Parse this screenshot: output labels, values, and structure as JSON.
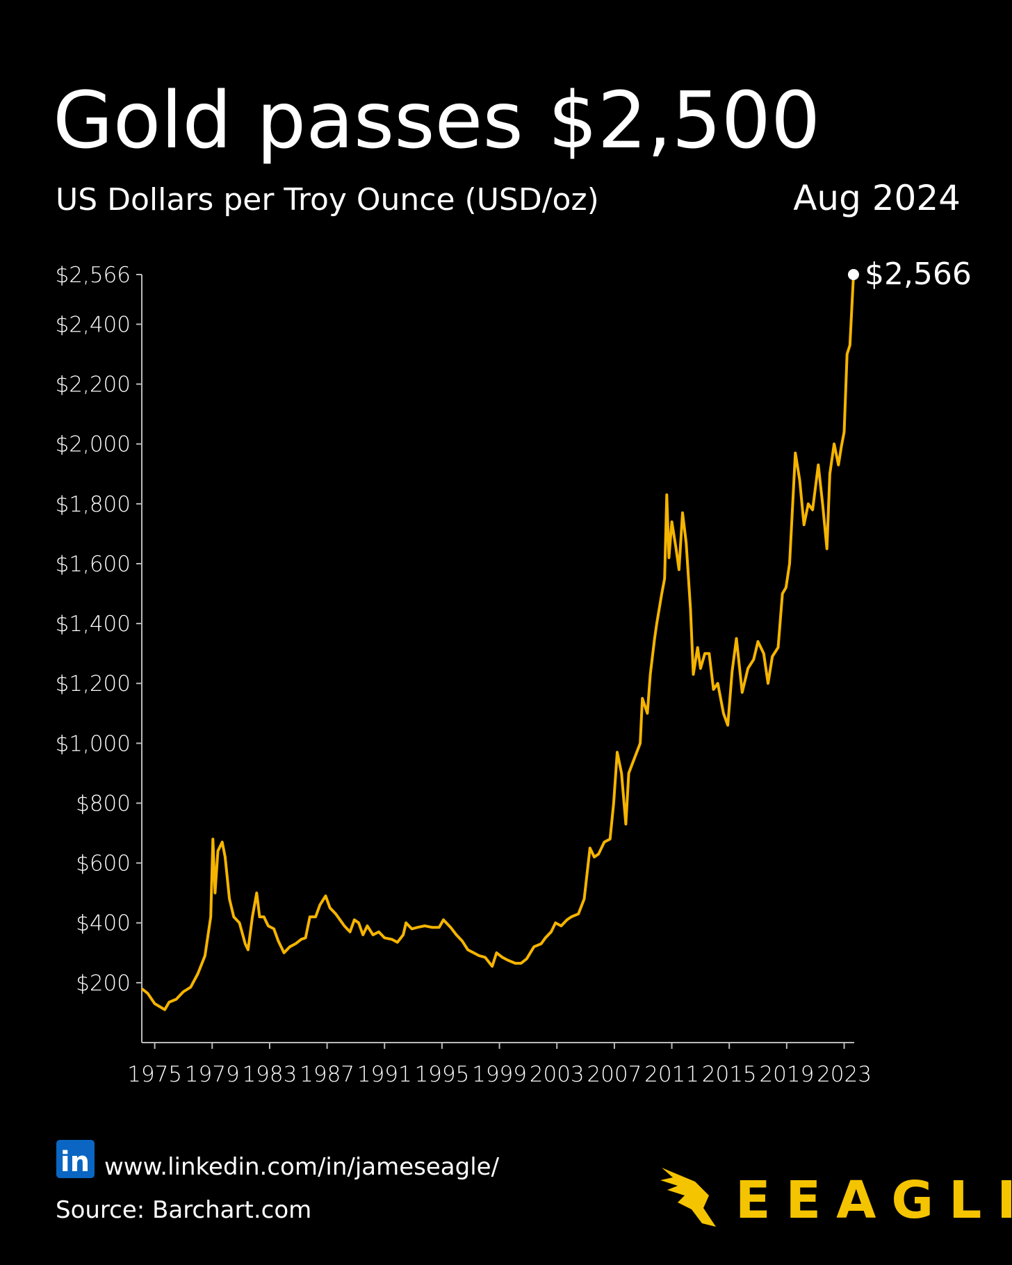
{
  "chart_data": {
    "type": "line",
    "title": "Gold passes $2,500",
    "subtitle": "US Dollars per Troy Ounce (USD/oz)",
    "date": "Aug 2024",
    "annotation": "$2,566",
    "footer_url": "www.linkedin.com/in/jameseagle/",
    "source": "Source: Barchart.com",
    "brand": "EEAGLI",
    "color": "#f5b400",
    "x": [
      1974.1,
      1974.5,
      1975.0,
      1975.7,
      1976.0,
      1976.5,
      1977.0,
      1977.5,
      1978.0,
      1978.5,
      1978.9,
      1979.05,
      1979.2,
      1979.4,
      1979.7,
      1979.9,
      1980.2,
      1980.5,
      1980.9,
      1981.3,
      1981.5,
      1981.8,
      1982.1,
      1982.3,
      1982.6,
      1982.9,
      1983.3,
      1983.6,
      1984.0,
      1984.4,
      1984.8,
      1985.2,
      1985.5,
      1985.8,
      1986.2,
      1986.5,
      1986.9,
      1987.2,
      1987.6,
      1987.9,
      1988.2,
      1988.6,
      1988.9,
      1989.2,
      1989.5,
      1989.8,
      1990.2,
      1990.6,
      1991.0,
      1991.5,
      1991.9,
      1992.3,
      1992.5,
      1992.9,
      1993.3,
      1993.8,
      1994.3,
      1994.8,
      1995.1,
      1995.6,
      1996.0,
      1996.4,
      1996.8,
      1997.2,
      1997.6,
      1998.0,
      1998.5,
      1998.8,
      1999.2,
      1999.6,
      2000.1,
      2000.5,
      2000.9,
      2001.4,
      2001.9,
      2002.2,
      2002.6,
      2002.9,
      2003.3,
      2003.7,
      2004.0,
      2004.5,
      2004.9,
      2005.3,
      2005.6,
      2005.9,
      2006.3,
      2006.7,
      2006.95,
      2007.2,
      2007.5,
      2007.8,
      2008.0,
      2008.4,
      2008.8,
      2008.95,
      2009.3,
      2009.5,
      2009.8,
      2009.95,
      2010.3,
      2010.5,
      2010.65,
      2010.8,
      2011.0,
      2011.3,
      2011.5,
      2011.75,
      2012.0,
      2012.3,
      2012.5,
      2012.8,
      2013.0,
      2013.3,
      2013.6,
      2013.9,
      2014.2,
      2014.6,
      2014.9,
      2015.2,
      2015.5,
      2015.9,
      2016.3,
      2016.7,
      2017.0,
      2017.4,
      2017.7,
      2018.0,
      2018.4,
      2018.7,
      2018.95,
      2019.2,
      2019.6,
      2019.9,
      2020.2,
      2020.5,
      2020.8,
      2021.2,
      2021.5,
      2021.8,
      2022.0,
      2022.3,
      2022.6,
      2022.8,
      2023.0,
      2023.2,
      2023.4,
      2023.65
    ],
    "values": [
      180,
      165,
      130,
      110,
      135,
      145,
      170,
      185,
      230,
      290,
      420,
      680,
      500,
      640,
      670,
      620,
      480,
      420,
      400,
      330,
      310,
      420,
      500,
      420,
      420,
      390,
      380,
      340,
      300,
      320,
      330,
      345,
      350,
      420,
      420,
      460,
      490,
      450,
      430,
      410,
      390,
      370,
      410,
      400,
      360,
      390,
      360,
      370,
      350,
      345,
      335,
      360,
      400,
      380,
      385,
      390,
      385,
      385,
      410,
      385,
      360,
      340,
      310,
      300,
      290,
      285,
      255,
      300,
      285,
      275,
      265,
      265,
      280,
      320,
      330,
      350,
      370,
      400,
      390,
      410,
      420,
      430,
      480,
      650,
      620,
      630,
      670,
      680,
      800,
      970,
      900,
      730,
      900,
      950,
      1000,
      1150,
      1100,
      1230,
      1350,
      1400,
      1500,
      1550,
      1830,
      1620,
      1740,
      1650,
      1580,
      1770,
      1670,
      1450,
      1230,
      1320,
      1250,
      1300,
      1300,
      1180,
      1200,
      1100,
      1060,
      1240,
      1350,
      1170,
      1250,
      1280,
      1340,
      1300,
      1200,
      1290,
      1320,
      1500,
      1520,
      1600,
      1970,
      1880,
      1730,
      1800,
      1780,
      1930,
      1800,
      1650,
      1900,
      2000,
      1930,
      1990,
      2040,
      2300,
      2330,
      2566
    ],
    "xlim": [
      1974.1,
      2023.7
    ],
    "xticks": [
      1975,
      1979,
      1983,
      1987,
      1991,
      1995,
      1999,
      2003,
      2007,
      2011,
      2015,
      2019,
      2023
    ],
    "ylim": [
      0,
      2566
    ],
    "yticks": [
      {
        "value": 200,
        "label": "$200"
      },
      {
        "value": 400,
        "label": "$400"
      },
      {
        "value": 600,
        "label": "$600"
      },
      {
        "value": 800,
        "label": "$800"
      },
      {
        "value": 1000,
        "label": "$1,000"
      },
      {
        "value": 1200,
        "label": "$1,200"
      },
      {
        "value": 1400,
        "label": "$1,400"
      },
      {
        "value": 1600,
        "label": "$1,600"
      },
      {
        "value": 1800,
        "label": "$1,800"
      },
      {
        "value": 2000,
        "label": "$2,000"
      },
      {
        "value": 2200,
        "label": "$2,200"
      },
      {
        "value": 2400,
        "label": "$2,400"
      },
      {
        "value": 2566,
        "label": "$2,566"
      }
    ],
    "grid": false
  }
}
